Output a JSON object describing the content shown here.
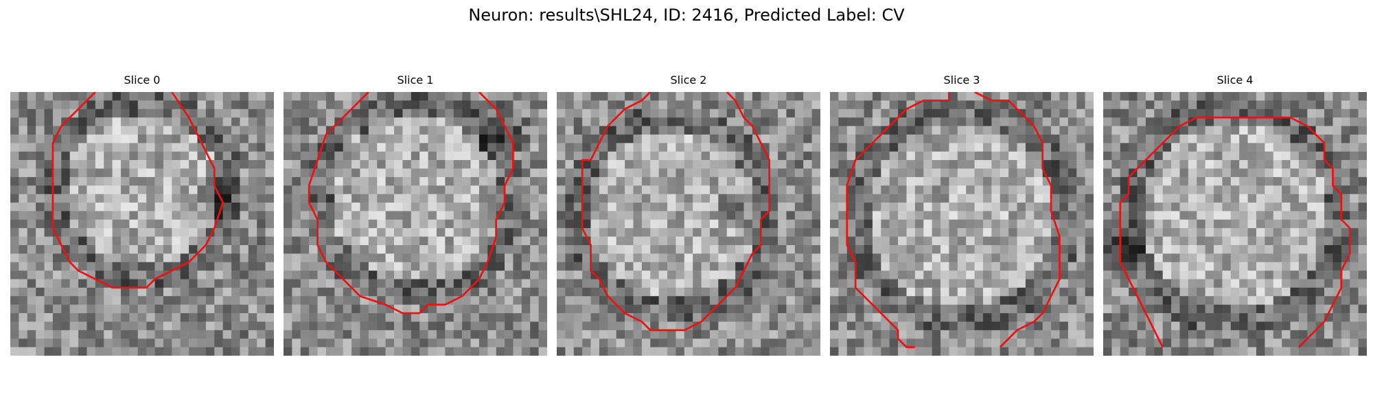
{
  "figure": {
    "title": "Neuron: results\\SHL24, ID: 2416, Predicted Label: CV",
    "colors": {
      "contour": "#ee1111",
      "background": "#ffffff"
    },
    "slices": [
      {
        "label": "Slice 0"
      },
      {
        "label": "Slice 1"
      },
      {
        "label": "Slice 2"
      },
      {
        "label": "Slice 3"
      },
      {
        "label": "Slice 4"
      }
    ]
  }
}
